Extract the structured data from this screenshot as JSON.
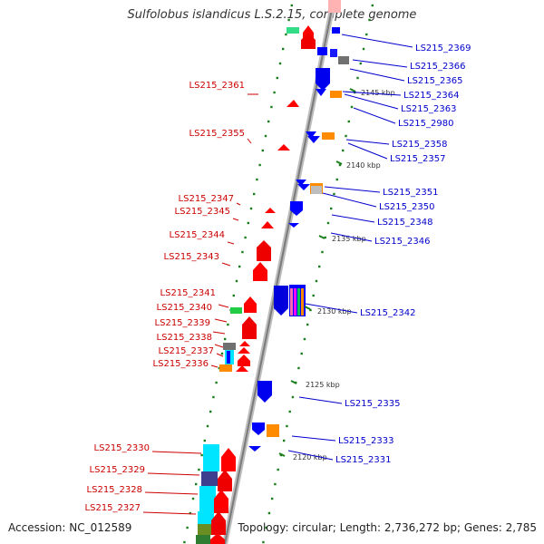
{
  "header": {
    "title": "Sulfolobus islandicus L.S.2.15, complete genome"
  },
  "footer": {
    "accession": "Accession: NC_012589",
    "summary": "Topology: circular; Length: 2,736,272 bp; Genes: 2,785"
  },
  "colors": {
    "forward_strand": "#ff0000",
    "reverse_strand": "#0000ff",
    "left_label": "#cc0000",
    "right_label": "#0000cc",
    "backbone": "#999999",
    "gc_tick": "#1a7f1a"
  },
  "ticks": [
    "2145 kbp",
    "2140 kbp",
    "2135 kbp",
    "2130 kbp",
    "2125 kbp",
    "2120 kbp"
  ],
  "left_labels": [
    "LS215_2361",
    "LS215_2355",
    "LS215_2347",
    "LS215_2345",
    "LS215_2344",
    "LS215_2343",
    "LS215_2341",
    "LS215_2340",
    "LS215_2339",
    "LS215_2338",
    "LS215_2337",
    "LS215_2336",
    "LS215_2330",
    "LS215_2329",
    "LS215_2328",
    "LS215_2327"
  ],
  "right_labels": [
    "LS215_2369",
    "LS215_2366",
    "LS215_2365",
    "LS215_2364",
    "LS215_2363",
    "LS215_2980",
    "LS215_2358",
    "LS215_2357",
    "LS215_2351",
    "LS215_2350",
    "LS215_2348",
    "LS215_2346",
    "LS215_2342",
    "LS215_2335",
    "LS215_2333",
    "LS215_2331"
  ]
}
